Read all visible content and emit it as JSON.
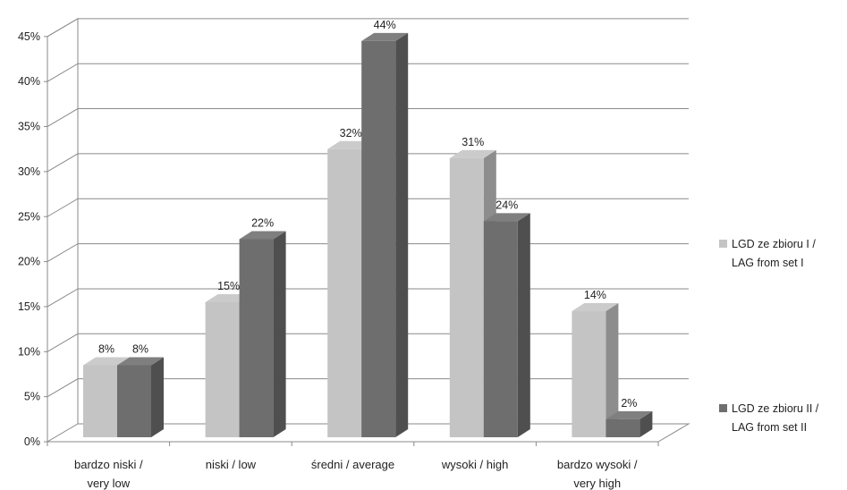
{
  "chart_data": {
    "type": "bar",
    "categories": [
      [
        "bardzo niski /",
        "very low"
      ],
      [
        "niski / low"
      ],
      [
        "średni / average"
      ],
      [
        "wysoki / high"
      ],
      [
        "bardzo wysoki /",
        "very high"
      ]
    ],
    "series": [
      {
        "name": [
          "LGD ze zbioru I /",
          "LAG from set I"
        ],
        "values": [
          8,
          15,
          32,
          31,
          14
        ],
        "color": "#c4c4c4"
      },
      {
        "name": [
          "LGD ze zbioru II /",
          "LAG from set II"
        ],
        "values": [
          8,
          22,
          44,
          24,
          2
        ],
        "color": "#6e6e6e"
      }
    ],
    "data_labels": [
      [
        "8%",
        "15%",
        "32%",
        "31%",
        "14%"
      ],
      [
        "8%",
        "22%",
        "44%",
        "24%",
        "2%"
      ]
    ],
    "y_ticks": [
      "0%",
      "5%",
      "10%",
      "15%",
      "20%",
      "25%",
      "30%",
      "35%",
      "40%",
      "45%"
    ],
    "ylim": [
      0,
      45
    ],
    "grid": true,
    "legend_position": "right",
    "three_d": true,
    "title": "",
    "xlabel": "",
    "ylabel": ""
  }
}
